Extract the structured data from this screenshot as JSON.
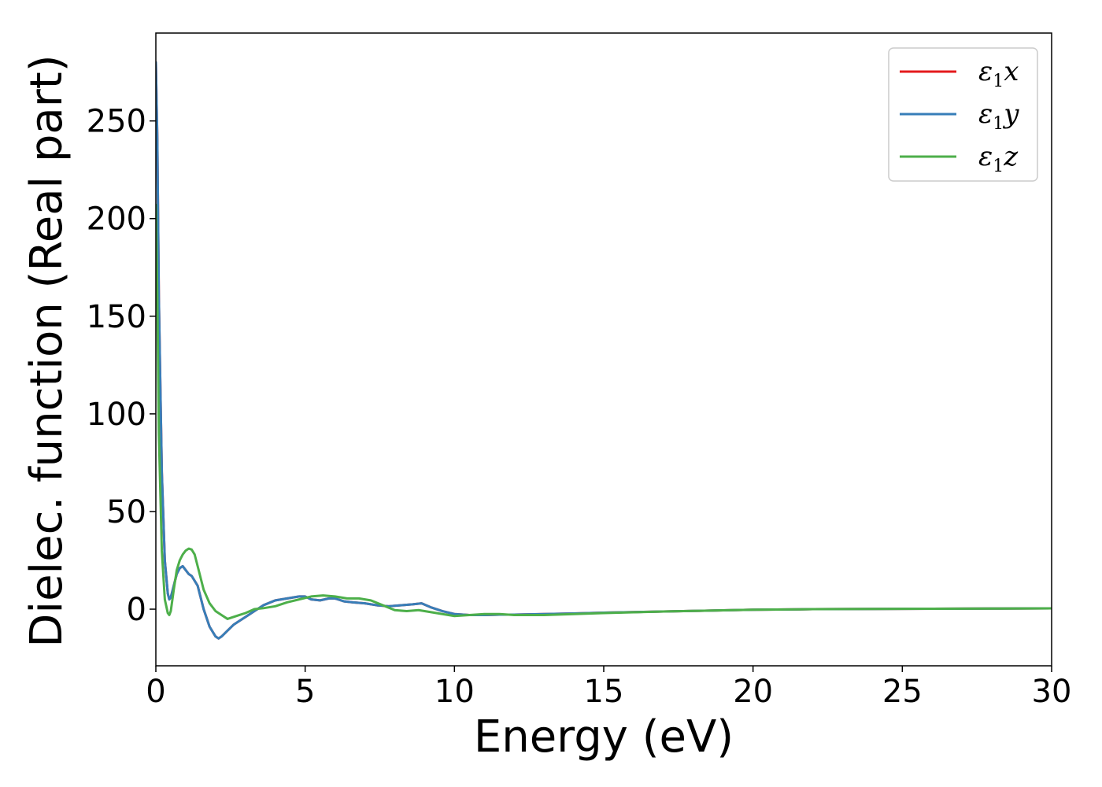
{
  "chart_data": {
    "type": "line",
    "title": "",
    "xlabel": "Energy (eV)",
    "ylabel": "Dielec. function (Real part)",
    "xlim": [
      0,
      30
    ],
    "ylim": [
      -29,
      295
    ],
    "xticks": [
      0,
      5,
      10,
      15,
      20,
      25,
      30
    ],
    "yticks": [
      0,
      50,
      100,
      150,
      200,
      250
    ],
    "grid": false,
    "legend_position": "top-right",
    "series": [
      {
        "name": "ε1x",
        "legend": {
          "symbol": "ε",
          "sub": "1",
          "var": "x"
        },
        "color": "#e41a1c",
        "x": [
          0,
          0.05,
          0.1,
          0.2,
          0.3,
          0.4,
          0.45,
          0.5,
          0.6,
          0.7,
          0.8,
          0.9,
          1.0,
          1.1,
          1.2,
          1.4,
          1.6,
          1.8,
          2.0,
          2.1,
          2.2,
          2.4,
          2.6,
          2.8,
          3.0,
          3.3,
          3.6,
          4.0,
          4.4,
          4.8,
          5.0,
          5.2,
          5.5,
          5.8,
          6.0,
          6.3,
          6.6,
          7.0,
          7.4,
          7.8,
          8.2,
          8.6,
          8.9,
          9.2,
          9.6,
          10.0,
          10.5,
          11.0,
          11.5,
          12.0,
          13.0,
          14.0,
          15.0,
          16.0,
          17.0,
          18.0,
          19.0,
          20.0,
          22.0,
          24.0,
          26.0,
          28.0,
          30.0
        ],
        "y": [
          280,
          240,
          160,
          70,
          25,
          8,
          5,
          6,
          12,
          18,
          21,
          22,
          20,
          18,
          17,
          12,
          0,
          -9,
          -14,
          -15,
          -14,
          -11,
          -8,
          -6,
          -4,
          -1,
          2,
          4.5,
          5.5,
          6.5,
          6.5,
          5,
          4.5,
          5.5,
          5.5,
          4,
          3.5,
          3,
          2,
          1.5,
          2,
          2.5,
          3,
          1,
          -1,
          -2.5,
          -3,
          -3,
          -2.8,
          -2.8,
          -2.5,
          -2.2,
          -1.8,
          -1.5,
          -1.2,
          -0.9,
          -0.6,
          -0.3,
          0,
          0.1,
          0.2,
          0.3,
          0.4
        ]
      },
      {
        "name": "ε1y",
        "legend": {
          "symbol": "ε",
          "sub": "1",
          "var": "y"
        },
        "color": "#377eb8",
        "x": [
          0,
          0.05,
          0.1,
          0.2,
          0.3,
          0.4,
          0.45,
          0.5,
          0.6,
          0.7,
          0.8,
          0.9,
          1.0,
          1.1,
          1.2,
          1.4,
          1.6,
          1.8,
          2.0,
          2.1,
          2.2,
          2.4,
          2.6,
          2.8,
          3.0,
          3.3,
          3.6,
          4.0,
          4.4,
          4.8,
          5.0,
          5.2,
          5.5,
          5.8,
          6.0,
          6.3,
          6.6,
          7.0,
          7.4,
          7.8,
          8.2,
          8.6,
          8.9,
          9.2,
          9.6,
          10.0,
          10.5,
          11.0,
          11.5,
          12.0,
          13.0,
          14.0,
          15.0,
          16.0,
          17.0,
          18.0,
          19.0,
          20.0,
          22.0,
          24.0,
          26.0,
          28.0,
          30.0
        ],
        "y": [
          280,
          240,
          160,
          70,
          25,
          8,
          5,
          6,
          12,
          18,
          21,
          22,
          20,
          18,
          17,
          12,
          0,
          -9,
          -14,
          -15,
          -14,
          -11,
          -8,
          -6,
          -4,
          -1,
          2,
          4.5,
          5.5,
          6.5,
          6.5,
          5,
          4.5,
          5.5,
          5.5,
          4,
          3.5,
          3,
          2,
          1.5,
          2,
          2.5,
          3,
          1,
          -1,
          -2.5,
          -3,
          -3,
          -2.8,
          -2.8,
          -2.5,
          -2.2,
          -1.8,
          -1.5,
          -1.2,
          -0.9,
          -0.6,
          -0.3,
          0,
          0.1,
          0.2,
          0.3,
          0.4
        ]
      },
      {
        "name": "ε1z",
        "legend": {
          "symbol": "ε",
          "sub": "1",
          "var": "z"
        },
        "color": "#4daf4a",
        "x": [
          0,
          0.05,
          0.1,
          0.2,
          0.3,
          0.4,
          0.45,
          0.5,
          0.6,
          0.7,
          0.8,
          0.9,
          1.0,
          1.1,
          1.2,
          1.3,
          1.4,
          1.6,
          1.8,
          2.0,
          2.2,
          2.4,
          2.6,
          2.8,
          3.0,
          3.3,
          3.6,
          4.0,
          4.4,
          4.8,
          5.2,
          5.6,
          6.0,
          6.4,
          6.8,
          7.2,
          7.6,
          8.0,
          8.4,
          8.8,
          9.2,
          9.6,
          10.0,
          10.5,
          11.0,
          11.5,
          12.0,
          13.0,
          14.0,
          15.0,
          16.0,
          17.0,
          18.0,
          19.0,
          20.0,
          22.0,
          24.0,
          26.0,
          28.0,
          30.0
        ],
        "y": [
          207,
          160,
          90,
          30,
          5,
          -2,
          -3,
          -1,
          10,
          20,
          25,
          28,
          30,
          31,
          30.5,
          28,
          22,
          10,
          3,
          -1,
          -3,
          -5,
          -4,
          -3,
          -2,
          0,
          0.5,
          1.5,
          3.5,
          5,
          6.5,
          7,
          6.5,
          5.5,
          5.5,
          4.5,
          2,
          -0.5,
          -1,
          -0.5,
          -1.5,
          -2.5,
          -3.5,
          -3,
          -2.5,
          -2.5,
          -3,
          -3,
          -2.5,
          -2,
          -1.6,
          -1.2,
          -0.9,
          -0.6,
          -0.3,
          0,
          0.1,
          0.2,
          0.3,
          0.4
        ]
      }
    ]
  }
}
